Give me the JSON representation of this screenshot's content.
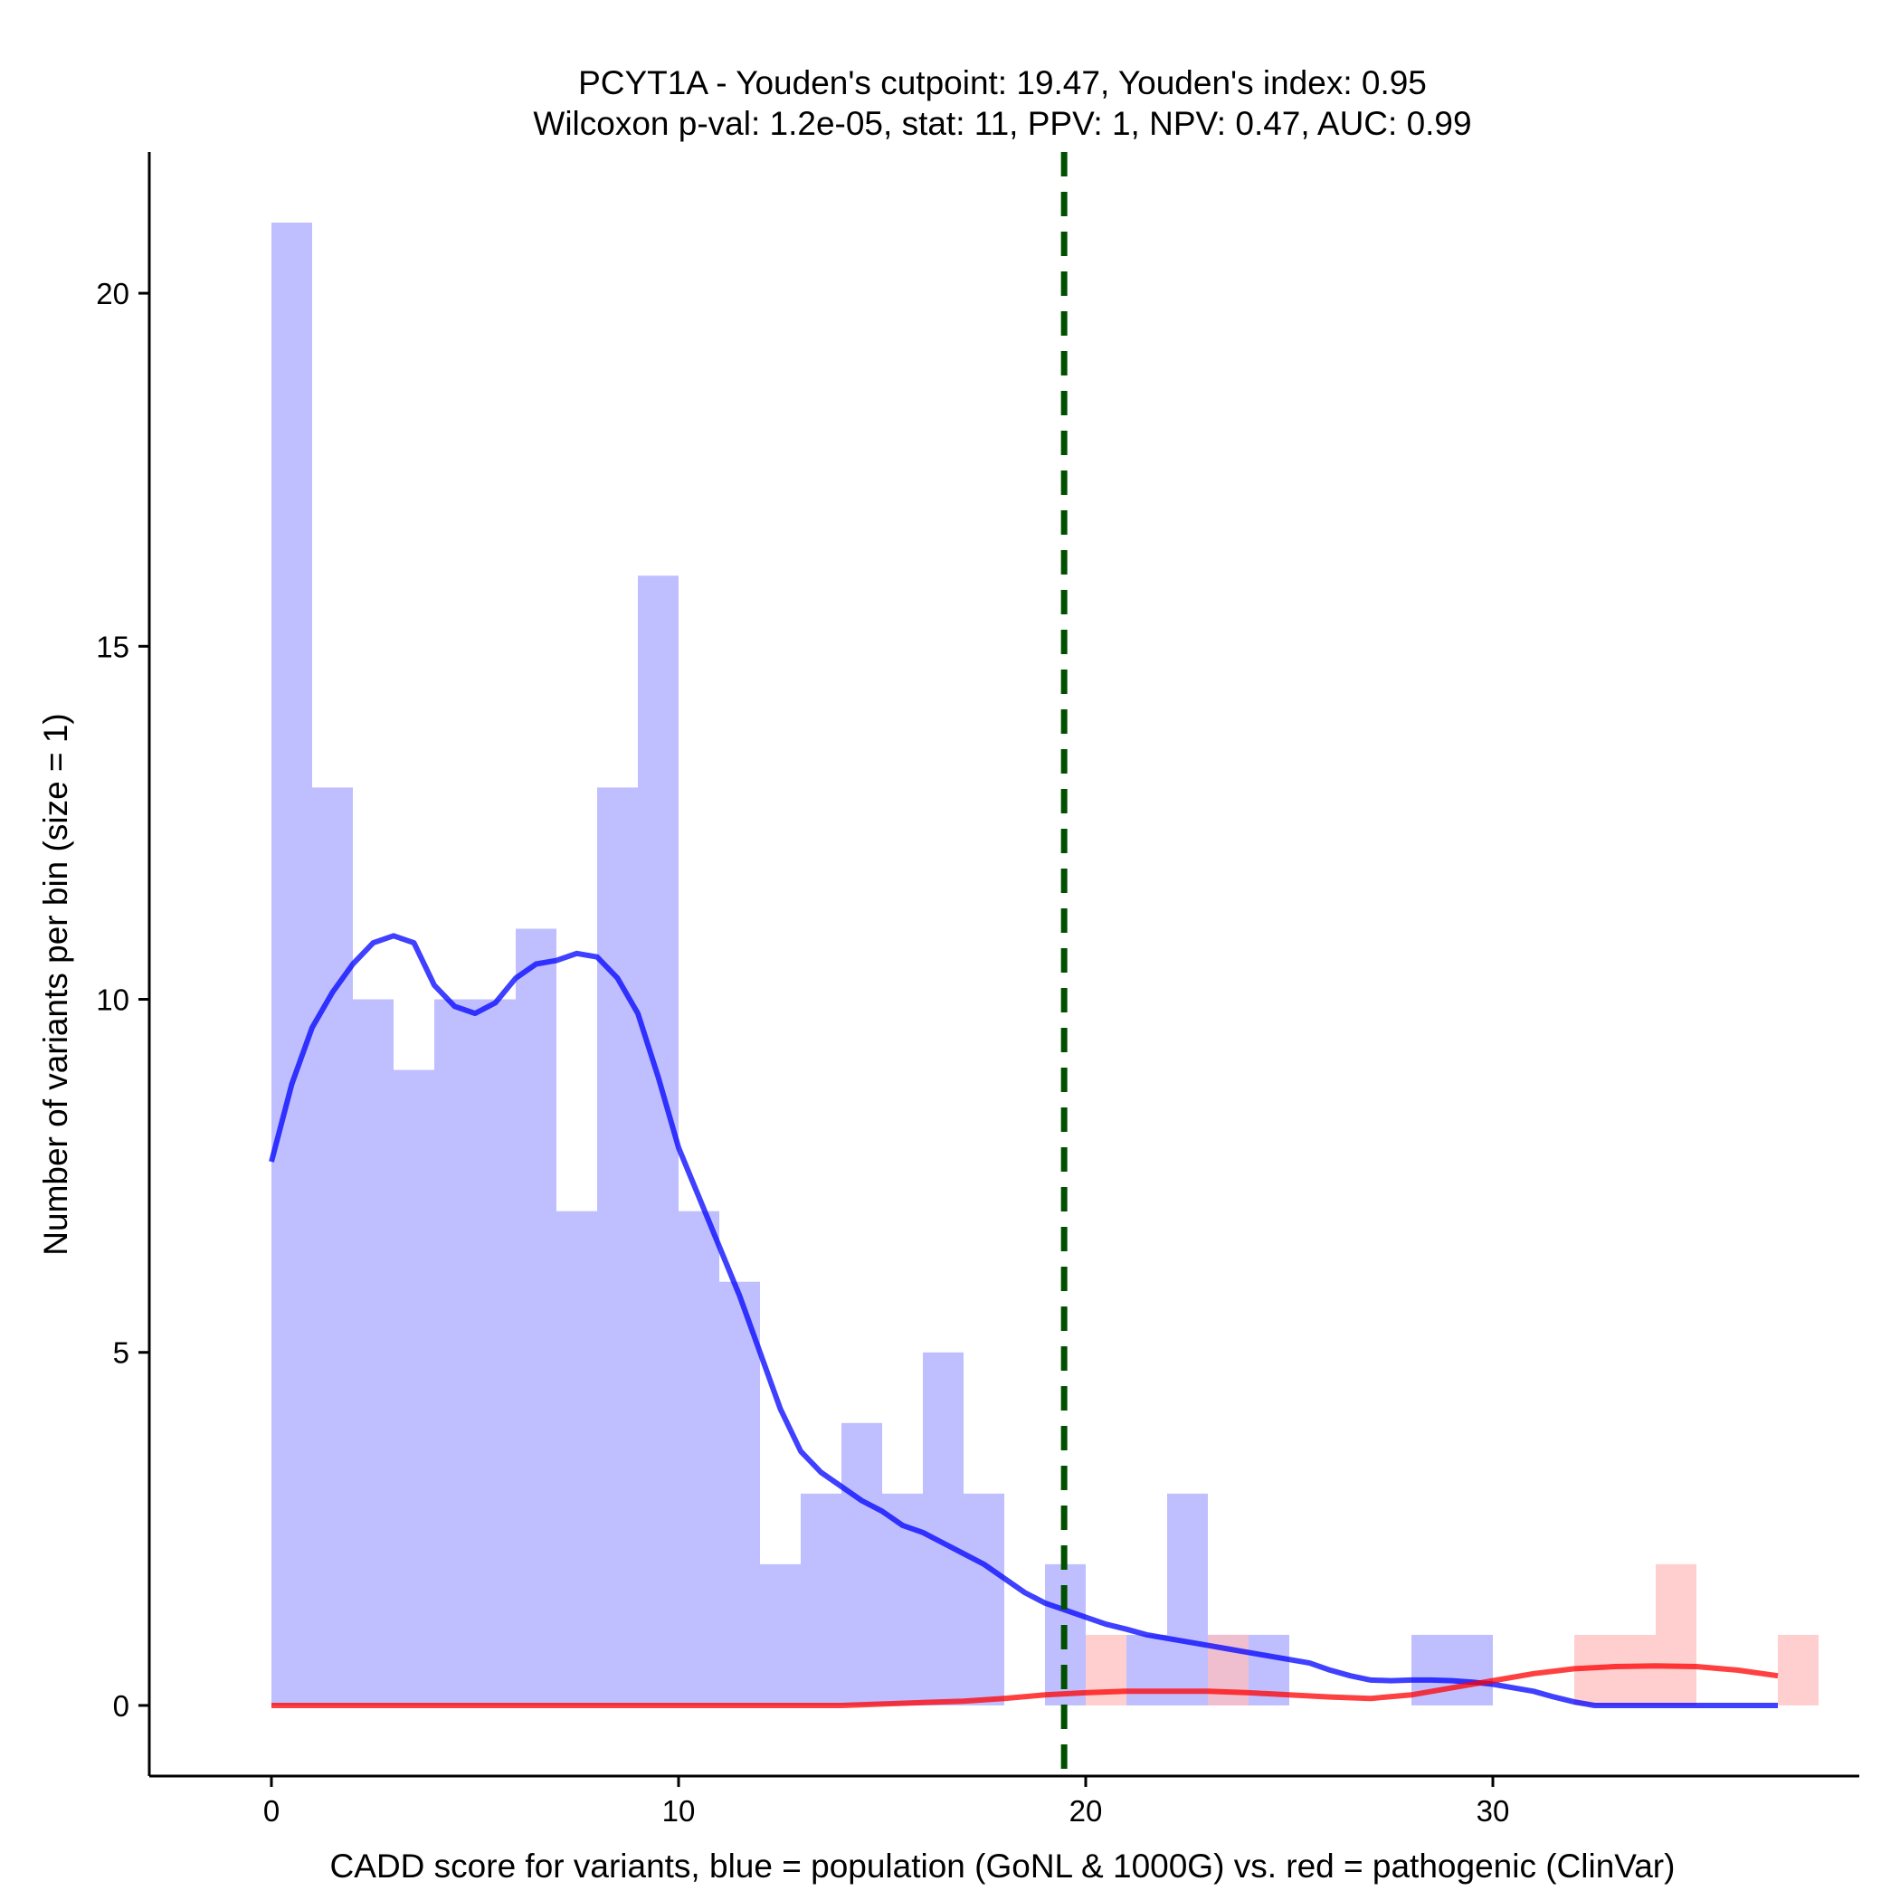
{
  "chart_data": {
    "type": "bar",
    "title": "PCYT1A - Youden's cutpoint: 19.47, Youden's index: 0.95",
    "subtitle": "Wilcoxon p-val: 1.2e-05, stat: 11, PPV: 1, NPV: 0.47, AUC: 0.99",
    "xlabel": "CADD score for variants, blue = population (GoNL & 1000G) vs. red = pathogenic (ClinVar)",
    "ylabel": "Number of variants per bin (size = 1)",
    "xlim": [
      -3,
      39
    ],
    "ylim": [
      -1,
      22
    ],
    "x_ticks": [
      0,
      10,
      20,
      30
    ],
    "y_ticks": [
      0,
      5,
      10,
      15,
      20
    ],
    "bin_size": 1,
    "cutpoint": 19.47,
    "series": [
      {
        "name": "population (GoNL & 1000G)",
        "color": "#0000ff",
        "fill_color": "#bfbfff",
        "bins": [
          {
            "x0": 0,
            "x1": 1,
            "count": 21
          },
          {
            "x0": 1,
            "x1": 2,
            "count": 13
          },
          {
            "x0": 2,
            "x1": 3,
            "count": 10
          },
          {
            "x0": 3,
            "x1": 4,
            "count": 9
          },
          {
            "x0": 4,
            "x1": 5,
            "count": 10
          },
          {
            "x0": 5,
            "x1": 6,
            "count": 10
          },
          {
            "x0": 6,
            "x1": 7,
            "count": 11
          },
          {
            "x0": 7,
            "x1": 8,
            "count": 7
          },
          {
            "x0": 8,
            "x1": 9,
            "count": 13
          },
          {
            "x0": 9,
            "x1": 10,
            "count": 16
          },
          {
            "x0": 10,
            "x1": 11,
            "count": 7
          },
          {
            "x0": 11,
            "x1": 12,
            "count": 6
          },
          {
            "x0": 12,
            "x1": 13,
            "count": 2
          },
          {
            "x0": 13,
            "x1": 14,
            "count": 3
          },
          {
            "x0": 14,
            "x1": 15,
            "count": 4
          },
          {
            "x0": 15,
            "x1": 16,
            "count": 3
          },
          {
            "x0": 16,
            "x1": 17,
            "count": 5
          },
          {
            "x0": 17,
            "x1": 18,
            "count": 3
          },
          {
            "x0": 19,
            "x1": 20,
            "count": 2
          },
          {
            "x0": 21,
            "x1": 22,
            "count": 1
          },
          {
            "x0": 22,
            "x1": 23,
            "count": 3
          },
          {
            "x0": 23,
            "x1": 24,
            "count": 1
          },
          {
            "x0": 24,
            "x1": 25,
            "count": 1
          },
          {
            "x0": 28,
            "x1": 29,
            "count": 1
          },
          {
            "x0": 29,
            "x1": 30,
            "count": 1
          }
        ],
        "density_curve": {
          "x": [
            0,
            0.5,
            1,
            1.5,
            2,
            2.5,
            3,
            3.5,
            4,
            4.5,
            5,
            5.5,
            6,
            6.5,
            7,
            7.5,
            8,
            8.5,
            9,
            9.5,
            10,
            10.5,
            11,
            11.5,
            12,
            12.5,
            13,
            13.5,
            14,
            14.5,
            15,
            15.5,
            16,
            16.5,
            17,
            17.5,
            18,
            18.5,
            19,
            19.5,
            20,
            20.5,
            21,
            21.5,
            22,
            22.5,
            23,
            23.5,
            24,
            24.5,
            25,
            25.5,
            26,
            26.5,
            27,
            27.5,
            28,
            28.5,
            29,
            29.5,
            30,
            30.5,
            31,
            31.5,
            32,
            32.5,
            33,
            33.5,
            34,
            34.5,
            35,
            35.5,
            36,
            36.5,
            37
          ],
          "y": [
            7.7,
            8.8,
            9.6,
            10.1,
            10.5,
            10.8,
            10.9,
            10.8,
            10.2,
            9.9,
            9.8,
            9.95,
            10.3,
            10.5,
            10.55,
            10.65,
            10.6,
            10.3,
            9.8,
            8.9,
            7.9,
            7.2,
            6.5,
            5.8,
            5.0,
            4.2,
            3.6,
            3.3,
            3.1,
            2.9,
            2.75,
            2.55,
            2.45,
            2.3,
            2.15,
            2.0,
            1.8,
            1.6,
            1.45,
            1.35,
            1.25,
            1.15,
            1.08,
            1.0,
            0.95,
            0.9,
            0.85,
            0.8,
            0.75,
            0.7,
            0.65,
            0.6,
            0.5,
            0.42,
            0.36,
            0.35,
            0.36,
            0.36,
            0.35,
            0.33,
            0.3,
            0.25,
            0.2,
            0.12,
            0.05,
            0.0,
            0.0,
            0.0,
            0.0,
            0.0,
            0.0,
            0.0,
            0.0,
            0.0,
            0.0
          ]
        }
      },
      {
        "name": "pathogenic (ClinVar)",
        "color": "#ff0000",
        "fill_color": "#ffbfbf",
        "bins": [
          {
            "x0": 20,
            "x1": 21,
            "count": 1
          },
          {
            "x0": 23,
            "x1": 24,
            "count": 1
          },
          {
            "x0": 32,
            "x1": 33,
            "count": 1
          },
          {
            "x0": 33,
            "x1": 34,
            "count": 1
          },
          {
            "x0": 34,
            "x1": 35,
            "count": 2
          },
          {
            "x0": 37,
            "x1": 38,
            "count": 1
          }
        ],
        "density_curve": {
          "x": [
            0,
            2,
            4,
            6,
            8,
            10,
            12,
            14,
            15,
            16,
            17,
            18,
            19,
            20,
            21,
            22,
            23,
            24,
            25,
            26,
            27,
            28,
            29,
            30,
            31,
            32,
            33,
            34,
            35,
            36,
            37
          ],
          "y": [
            0,
            0,
            0,
            0,
            0,
            0,
            0,
            0,
            0.02,
            0.04,
            0.06,
            0.1,
            0.15,
            0.18,
            0.2,
            0.2,
            0.2,
            0.18,
            0.15,
            0.12,
            0.1,
            0.15,
            0.25,
            0.35,
            0.45,
            0.52,
            0.55,
            0.56,
            0.55,
            0.5,
            0.42
          ]
        }
      }
    ]
  }
}
